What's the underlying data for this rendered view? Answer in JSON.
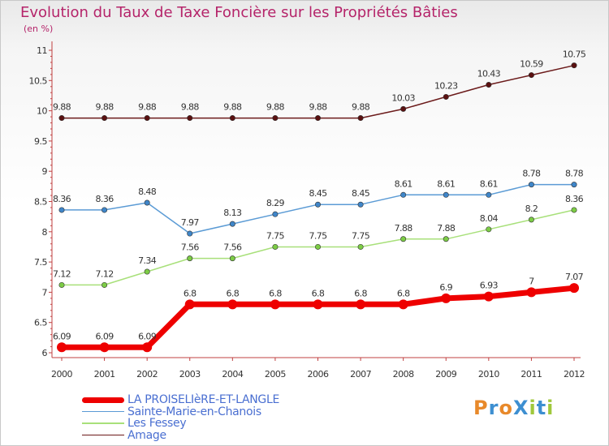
{
  "chart_data": {
    "type": "line",
    "title": "Evolution du Taux de Taxe Foncière sur les Propriétés Bâties",
    "unit_label": "(en %)",
    "x": [
      "2000",
      "2001",
      "2002",
      "2003",
      "2004",
      "2005",
      "2006",
      "2007",
      "2008",
      "2009",
      "2010",
      "2011",
      "2012"
    ],
    "ylim": [
      6,
      11
    ],
    "yticks": [
      "6",
      "6.5",
      "7",
      "7.5",
      "8",
      "8.5",
      "9",
      "9.5",
      "10",
      "10.5",
      "11"
    ],
    "grid": false,
    "legend_position": "bottom-left",
    "series": [
      {
        "name": "Amage",
        "color": "#6b1a1a",
        "marker": "#5a1010",
        "width": 1.5,
        "values": [
          9.88,
          9.88,
          9.88,
          9.88,
          9.88,
          9.88,
          9.88,
          9.88,
          10.03,
          10.23,
          10.43,
          10.59,
          10.75
        ],
        "labels": [
          "9.88",
          "9.88",
          "9.88",
          "9.88",
          "9.88",
          "9.88",
          "9.88",
          "9.88",
          "10.03",
          "10.23",
          "10.43",
          "10.59",
          "10.75"
        ]
      },
      {
        "name": "Sainte-Marie-en-Chanois",
        "color": "#5b9bd5",
        "marker": "#3f86c9",
        "width": 1.5,
        "values": [
          8.36,
          8.36,
          8.48,
          7.97,
          8.13,
          8.29,
          8.45,
          8.45,
          8.61,
          8.61,
          8.61,
          8.78,
          8.78
        ],
        "labels": [
          "8.36",
          "8.36",
          "8.48",
          "7.97",
          "8.13",
          "8.29",
          "8.45",
          "8.45",
          "8.61",
          "8.61",
          "8.61",
          "8.78",
          "8.78"
        ]
      },
      {
        "name": "Les Fessey",
        "color": "#a8e07a",
        "marker": "#7ccc45",
        "width": 1.5,
        "values": [
          7.12,
          7.12,
          7.34,
          7.56,
          7.56,
          7.75,
          7.75,
          7.75,
          7.88,
          7.88,
          8.04,
          8.2,
          8.36
        ],
        "labels": [
          "7.12",
          "7.12",
          "7.34",
          "7.56",
          "7.56",
          "7.75",
          "7.75",
          "7.75",
          "7.88",
          "7.88",
          "8.04",
          "8.2",
          "8.36"
        ]
      },
      {
        "name": "LA PROISELIèRE-ET-LANGLE",
        "color": "#ee0000",
        "marker": "#ee0000",
        "width": 7,
        "values": [
          6.09,
          6.09,
          6.09,
          6.8,
          6.8,
          6.8,
          6.8,
          6.8,
          6.8,
          6.9,
          6.93,
          7,
          7.07
        ],
        "labels": [
          "6.09",
          "6.09",
          "6.09",
          "6.8",
          "6.8",
          "6.8",
          "6.8",
          "6.8",
          "6.8",
          "6.9",
          "6.93",
          "7",
          "7.07"
        ]
      }
    ],
    "legend": [
      {
        "name": "LA PROISELIèRE-ET-LANGLE",
        "color": "#ee0000",
        "width": 7
      },
      {
        "name": "Sainte-Marie-en-Chanois",
        "color": "#5b9bd5",
        "width": 1.5
      },
      {
        "name": "Les Fessey",
        "color": "#a8e07a",
        "width": 1.5
      },
      {
        "name": "Amage",
        "color": "#6b1a1a",
        "width": 1.5
      }
    ]
  },
  "logo": {
    "text": "ProXiti",
    "letter_colors": [
      "#e8892a",
      "#3d8fd1",
      "#e8892a",
      "#3d8fd1",
      "#a0c83c",
      "#3d8fd1",
      "#a0c83c"
    ]
  }
}
